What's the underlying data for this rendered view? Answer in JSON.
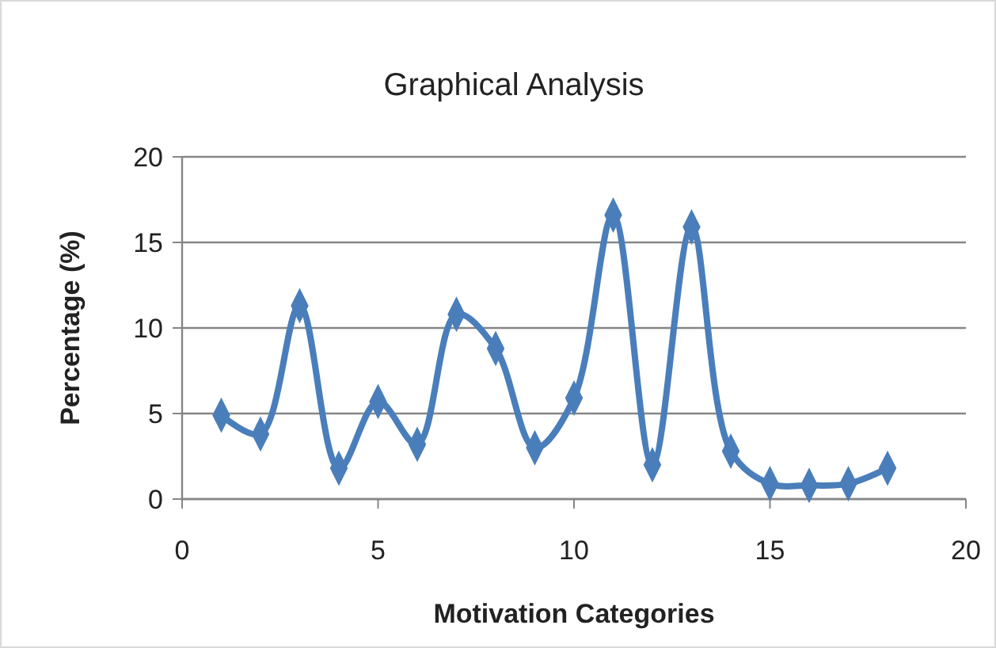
{
  "chart_data": {
    "type": "line",
    "title": "Graphical Analysis",
    "xlabel": "Motivation Categories",
    "ylabel": "Percentage (%)",
    "x": [
      1,
      2,
      3,
      4,
      5,
      6,
      7,
      8,
      9,
      10,
      11,
      12,
      13,
      14,
      15,
      16,
      17,
      18
    ],
    "series": [
      {
        "color": "#4a7ebb",
        "values": [
          4.9,
          3.8,
          11.3,
          1.8,
          5.7,
          3.2,
          10.8,
          8.8,
          3.0,
          5.9,
          16.6,
          2.0,
          15.9,
          2.8,
          0.9,
          0.8,
          0.9,
          1.8
        ]
      }
    ],
    "xlim": [
      0,
      20
    ],
    "xticks": [
      0,
      5,
      10,
      15,
      20
    ],
    "ylim": [
      0,
      20
    ],
    "yticks": [
      0,
      5,
      10,
      15,
      20
    ],
    "grid": "y",
    "marker": "diamond",
    "line_style": "solid"
  }
}
